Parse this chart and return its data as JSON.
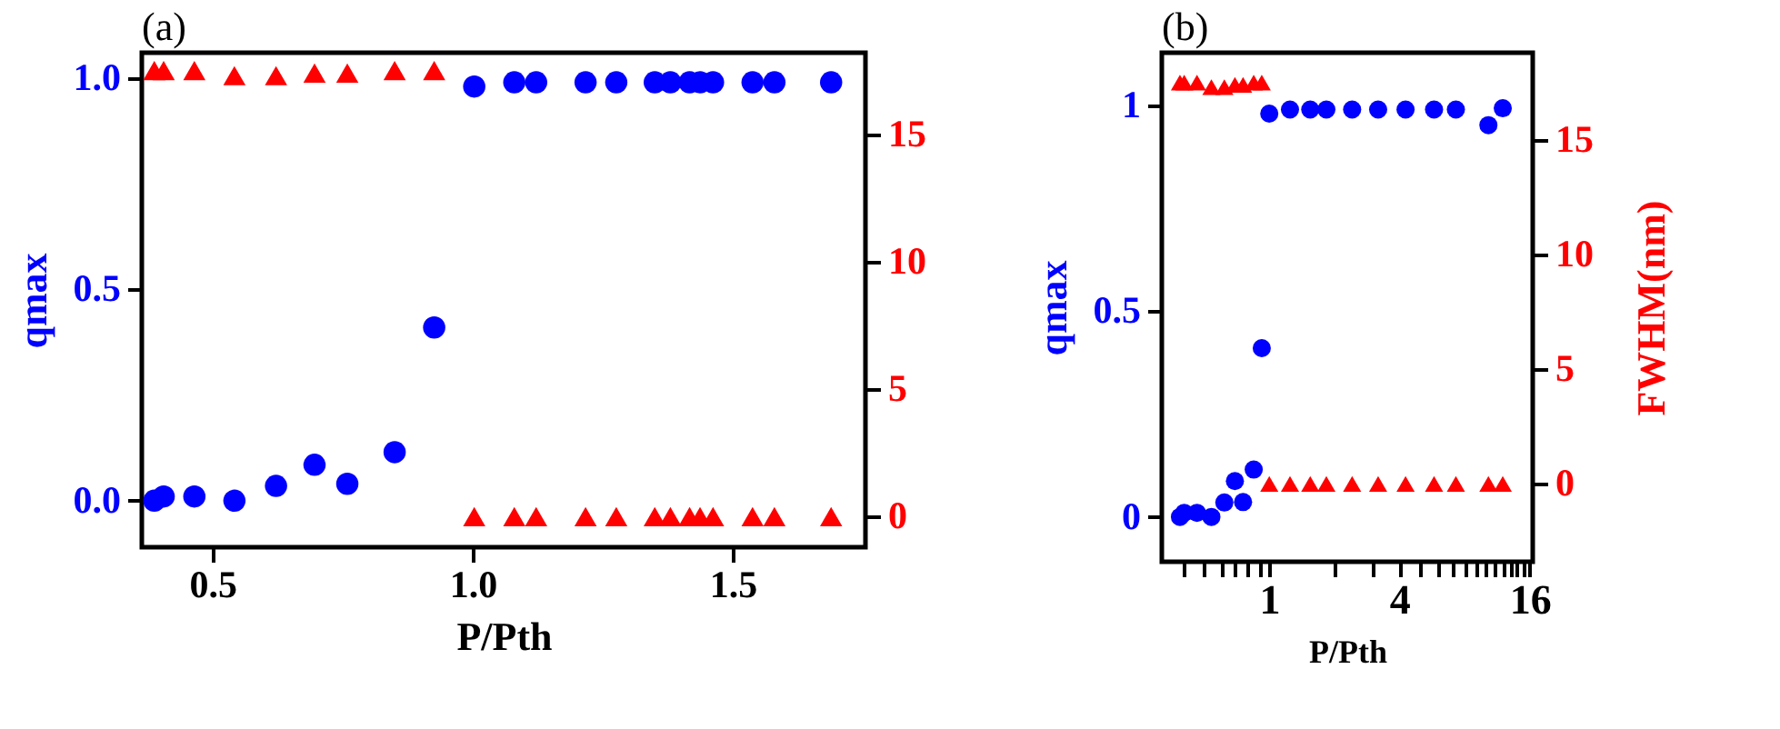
{
  "chart_data": [
    {
      "type": "scatter",
      "title": "(a)",
      "xlabel": "P/Pth",
      "ylabel": "qmax",
      "xlim": [
        0.364,
        1.755
      ],
      "xticks": [
        0.5,
        {
          "value": 1.0,
          "label": "1.0"
        },
        1.5
      ],
      "ylim": [
        -0.11,
        1.06
      ],
      "yticks": [
        {
          "value": 0,
          "label": "0.0"
        },
        0.5,
        {
          "value": 1,
          "label": "1.0"
        }
      ],
      "y2lim": [
        -1.2,
        18.2
      ],
      "y2ticks": [
        0,
        5,
        10,
        15
      ],
      "grid": false,
      "series": [
        {
          "color": "#0000ff",
          "marker": "circle",
          "x": [
            0.388,
            0.406,
            0.465,
            0.542,
            0.622,
            0.696,
            0.759,
            0.85,
            0.926,
            1.003,
            1.08,
            1.122,
            1.217,
            1.276,
            1.35,
            1.38,
            1.417,
            1.437,
            1.462,
            1.538,
            1.58,
            1.689
          ],
          "values": [
            0.0,
            0.01,
            0.01,
            0.0,
            0.035,
            0.085,
            0.04,
            0.115,
            0.41,
            0.98,
            0.99,
            0.99,
            0.99,
            0.99,
            0.99,
            0.99,
            0.99,
            0.99,
            0.99,
            0.99,
            0.99,
            0.99
          ]
        },
        {
          "color": "#ff0000",
          "marker": "triangle",
          "axis": "y2",
          "x": [
            0.388,
            0.406,
            0.465,
            0.542,
            0.622,
            0.696,
            0.759,
            0.85,
            0.926,
            1.003,
            1.08,
            1.122,
            1.217,
            1.276,
            1.35,
            1.38,
            1.417,
            1.437,
            1.462,
            1.538,
            1.58,
            1.689
          ],
          "values": [
            17.5,
            17.5,
            17.5,
            17.3,
            17.3,
            17.4,
            17.4,
            17.5,
            17.5,
            0,
            0,
            0,
            0,
            0,
            0,
            0,
            0,
            0,
            0,
            0,
            0,
            0
          ]
        }
      ]
    },
    {
      "type": "scatter",
      "title": "(b)",
      "xlabel": "P/Pth",
      "ylabel": "qmax",
      "y2label": "FWHM(nm)",
      "log": "x",
      "xlim": [
        0.32,
        16.5
      ],
      "xticks": [
        {
          "value": 0.4,
          "label": null
        },
        {
          "value": 0.5,
          "label": null
        },
        {
          "value": 0.6,
          "label": null
        },
        {
          "value": 0.7,
          "label": null
        },
        {
          "value": 0.8,
          "label": null
        },
        {
          "value": 0.9,
          "label": null
        },
        1,
        {
          "value": 2,
          "label": null
        },
        {
          "value": 3,
          "label": null
        },
        4,
        {
          "value": 5,
          "label": null
        },
        {
          "value": 6,
          "label": null
        },
        {
          "value": 7,
          "label": null
        },
        {
          "value": 8,
          "label": null
        },
        {
          "value": 9,
          "label": null
        },
        {
          "value": 10,
          "label": null
        },
        {
          "value": 11,
          "label": null
        },
        {
          "value": 12,
          "label": null
        },
        {
          "value": 13,
          "label": null
        },
        {
          "value": 14,
          "label": null
        },
        {
          "value": 15,
          "label": null
        },
        16
      ],
      "ylim": [
        -0.109,
        1.128
      ],
      "yticks": [
        0,
        0.5,
        1
      ],
      "y2lim": [
        -3.39,
        18.8
      ],
      "y2ticks": [
        0,
        5,
        10,
        15
      ],
      "grid": false,
      "series": [
        {
          "color": "#0000ff",
          "marker": "circle",
          "x": [
            0.388,
            0.406,
            0.465,
            0.542,
            0.622,
            0.696,
            0.759,
            0.85,
            0.926,
            1.003,
            1.25,
            1.55,
            1.84,
            2.42,
            3.19,
            4.27,
            5.78,
            7.29,
            10.3,
            12.0
          ],
          "values": [
            0.0,
            0.01,
            0.01,
            0.0,
            0.035,
            0.087,
            0.036,
            0.115,
            0.41,
            0.98,
            0.99,
            0.99,
            0.99,
            0.99,
            0.99,
            0.99,
            0.99,
            0.99,
            0.952,
            0.993
          ]
        },
        {
          "color": "#ff0000",
          "marker": "triangle",
          "axis": "y2",
          "x": [
            0.388,
            0.406,
            0.465,
            0.542,
            0.622,
            0.696,
            0.759,
            0.85,
            0.926,
            1.003,
            1.25,
            1.55,
            1.84,
            2.42,
            3.19,
            4.27,
            5.78,
            7.29,
            10.3,
            12.0
          ],
          "values": [
            17.5,
            17.5,
            17.5,
            17.3,
            17.3,
            17.4,
            17.4,
            17.5,
            17.5,
            0,
            0,
            0,
            0,
            0,
            0,
            0,
            0,
            0,
            0,
            0
          ]
        }
      ]
    }
  ]
}
